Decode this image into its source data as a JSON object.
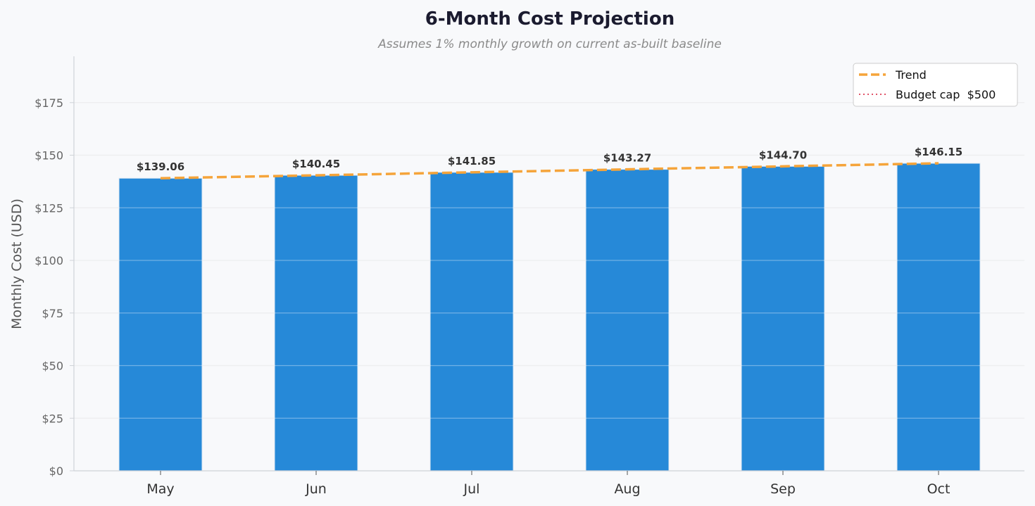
{
  "chart_data": {
    "type": "bar",
    "title": "6-Month Cost Projection",
    "subtitle": "Assumes 1% monthly growth on current as-built baseline",
    "xlabel": "",
    "ylabel": "Monthly Cost (USD)",
    "categories": [
      "May",
      "Jun",
      "Jul",
      "Aug",
      "Sep",
      "Oct"
    ],
    "values": [
      139.06,
      140.45,
      141.85,
      143.27,
      144.7,
      146.15
    ],
    "value_labels": [
      "$139.06",
      "$140.45",
      "$141.85",
      "$143.27",
      "$144.70",
      "$146.15"
    ],
    "ylim": [
      0,
      197
    ],
    "yticks": [
      0,
      25,
      50,
      75,
      100,
      125,
      150,
      175
    ],
    "ytick_labels": [
      "$0",
      "$25",
      "$50",
      "$75",
      "$100",
      "$125",
      "$150",
      "$175"
    ],
    "grid": "horizontal",
    "legend_position": "top-right",
    "legend": [
      {
        "label": "Trend",
        "style": "dashed",
        "color": "#f5a43a"
      },
      {
        "label": "Budget cap  $500",
        "style": "dotted",
        "color": "#e0556a"
      }
    ],
    "bar_color": "#2689d8",
    "trend_color": "#f5a43a",
    "budget_cap": 500
  }
}
